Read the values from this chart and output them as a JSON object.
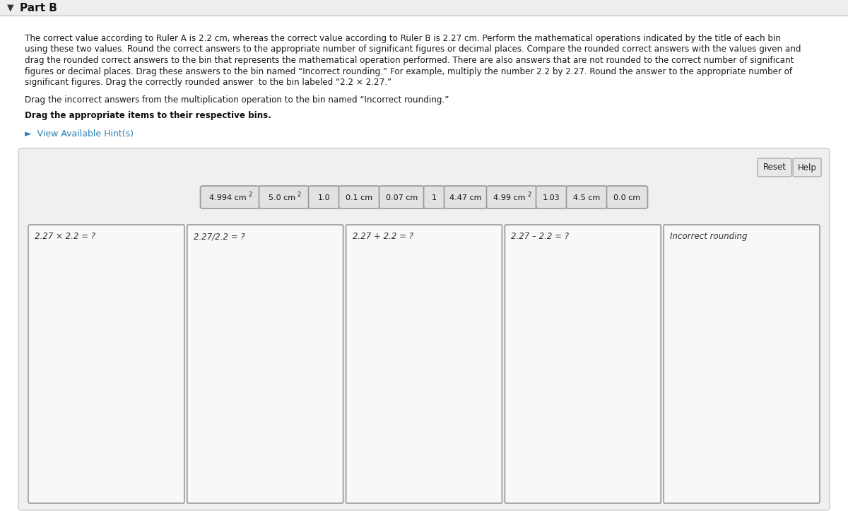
{
  "title": "Part B",
  "background_color": "#f5f5f5",
  "white_bg": "#ffffff",
  "para1_lines": [
    "The correct value according to Ruler A is 2.2 cm, whereas the correct value according to Ruler B is 2.27 cm. Perform the mathematical operations indicated by the title of each bin",
    "using these two values. Round the correct answers to the appropriate number of significant figures or decimal places. Compare the rounded correct answers with the values given and",
    "drag the rounded correct answers to the bin that represents the mathematical operation performed. There are also answers that are not rounded to the correct number of significant",
    "figures or decimal places. Drag these answers to the bin named “Incorrect rounding.” For example, multiply the number 2.2 by 2.27. Round the answer to the appropriate number of",
    "significant figures. Drag the correctly rounded answer  to the bin labeled “2.2 × 2.27.”"
  ],
  "para2": "Drag the incorrect answers from the multiplication operation to the bin named “Incorrect rounding.”",
  "para3": "Drag the appropriate items to their respective bins.",
  "hint_text": "►  View Available Hint(s)",
  "buttons": [
    "Reset",
    "Help"
  ],
  "draggable_items": [
    "4.994 cm²",
    "5.0 cm²",
    "1.0",
    "0.1 cm",
    "0.07 cm",
    "1",
    "4.47 cm",
    "4.99 cm²",
    "1.03",
    "4.5 cm",
    "0.0 cm"
  ],
  "item_widths": [
    78,
    65,
    38,
    52,
    58,
    24,
    55,
    65,
    38,
    52,
    52
  ],
  "bins": [
    "2.27 × 2.2 = ?",
    "2.27/2.2 = ?",
    "2.27 + 2.2 = ?",
    "2.27 – 2.2 = ?",
    "Incorrect rounding"
  ],
  "text_color": "#1a1a1a",
  "hint_color": "#2b7db5",
  "item_bg": "#e2e2e2",
  "item_border": "#999999",
  "bin_bg": "#f8f8f8",
  "bin_border": "#999999",
  "panel_bg": "#f0f0f0",
  "panel_border": "#cccccc"
}
